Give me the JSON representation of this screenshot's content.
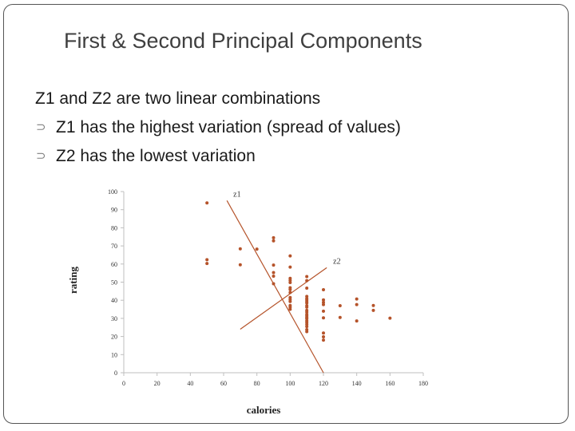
{
  "slide": {
    "title": "First & Second Principal Components",
    "intro": "Z1 and Z2 are two linear combinations",
    "bullets": [
      {
        "icon": "hollow-leaf-bullet-icon",
        "text": "Z1 has the highest variation (spread of values)"
      },
      {
        "icon": "hollow-leaf-bullet-icon",
        "text": "Z2 has the lowest variation"
      }
    ],
    "bullet_glyph": "⊃"
  },
  "chart_data": {
    "type": "scatter",
    "title": "",
    "xlabel": "calories",
    "ylabel": "rating",
    "xlim": [
      0,
      180
    ],
    "ylim": [
      0,
      100
    ],
    "xticks": [
      0,
      20,
      40,
      60,
      80,
      100,
      120,
      140,
      160,
      180
    ],
    "yticks": [
      0,
      10,
      20,
      30,
      40,
      50,
      60,
      70,
      80,
      90,
      100
    ],
    "grid": false,
    "colors": {
      "points": "#b5532a",
      "lines": "#b5532a",
      "axis": "#bfbfbf"
    },
    "points": [
      [
        50,
        93.7
      ],
      [
        50,
        60.3
      ],
      [
        50,
        62.4
      ],
      [
        70,
        68.4
      ],
      [
        70,
        59.6
      ],
      [
        80,
        68.2
      ],
      [
        90,
        74.5
      ],
      [
        90,
        72.8
      ],
      [
        90,
        59.4
      ],
      [
        90,
        55.3
      ],
      [
        90,
        53.3
      ],
      [
        90,
        49.1
      ],
      [
        100,
        64.5
      ],
      [
        100,
        58.3
      ],
      [
        100,
        52.1
      ],
      [
        100,
        51.0
      ],
      [
        100,
        49.8
      ],
      [
        100,
        46.9
      ],
      [
        100,
        45.9
      ],
      [
        100,
        44.3
      ],
      [
        100,
        41.5
      ],
      [
        100,
        40.4
      ],
      [
        100,
        39.3
      ],
      [
        100,
        37.1
      ],
      [
        100,
        36.2
      ],
      [
        100,
        35.0
      ],
      [
        110,
        53.1
      ],
      [
        110,
        50.8
      ],
      [
        110,
        46.7
      ],
      [
        110,
        42.1
      ],
      [
        110,
        40.9
      ],
      [
        110,
        40.1
      ],
      [
        110,
        39.2
      ],
      [
        110,
        38.5
      ],
      [
        110,
        37.0
      ],
      [
        110,
        36.2
      ],
      [
        110,
        34.4
      ],
      [
        110,
        33.5
      ],
      [
        110,
        32.2
      ],
      [
        110,
        31.4
      ],
      [
        110,
        30.5
      ],
      [
        110,
        29.9
      ],
      [
        110,
        28.7
      ],
      [
        110,
        27.8
      ],
      [
        110,
        26.7
      ],
      [
        110,
        25.5
      ],
      [
        110,
        23.8
      ],
      [
        110,
        22.7
      ],
      [
        120,
        45.8
      ],
      [
        120,
        40.2
      ],
      [
        120,
        38.8
      ],
      [
        120,
        37.6
      ],
      [
        120,
        34.0
      ],
      [
        120,
        30.3
      ],
      [
        120,
        21.9
      ],
      [
        120,
        19.8
      ],
      [
        120,
        18.0
      ],
      [
        130,
        37.0
      ],
      [
        130,
        30.5
      ],
      [
        140,
        40.7
      ],
      [
        140,
        37.6
      ],
      [
        140,
        28.6
      ],
      [
        150,
        37.1
      ],
      [
        150,
        34.4
      ],
      [
        160,
        30.1
      ]
    ],
    "lines": [
      {
        "name": "z1",
        "from": [
          62,
          95
        ],
        "to": [
          120,
          0
        ]
      },
      {
        "name": "z2",
        "from": [
          70,
          24
        ],
        "to": [
          122,
          58
        ]
      }
    ]
  }
}
